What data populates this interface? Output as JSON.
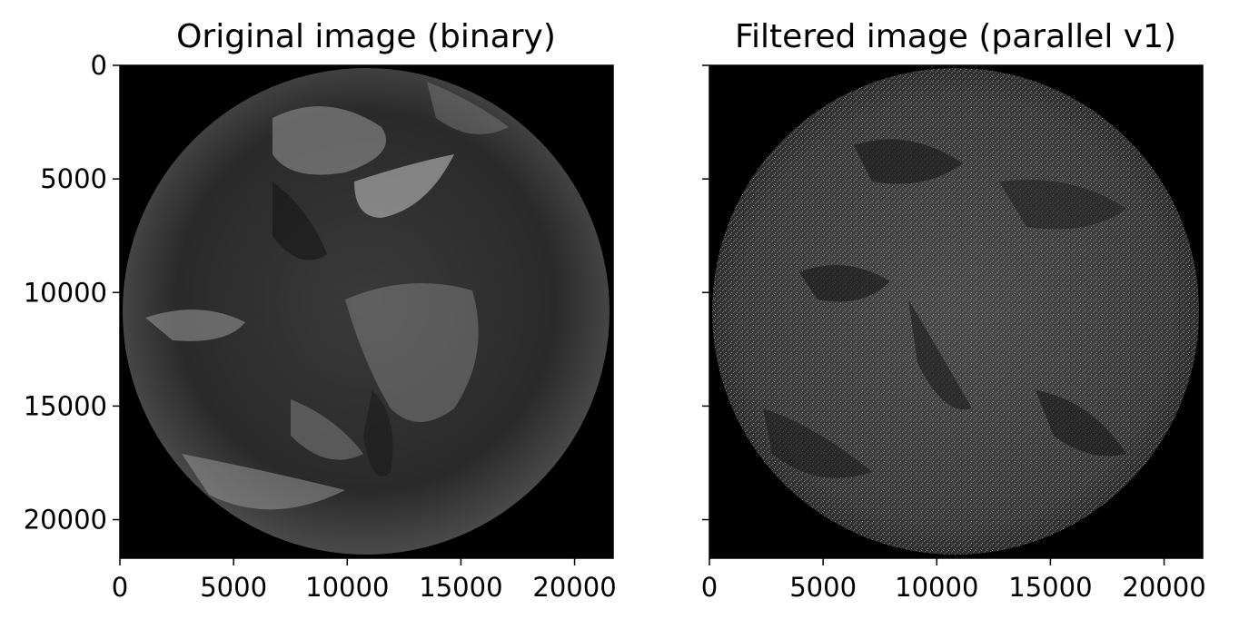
{
  "chart_data": [
    {
      "type": "image",
      "title": "Original image (binary)",
      "xlim": [
        0,
        21696
      ],
      "ylim": [
        21696,
        0
      ],
      "xticks": [
        0,
        5000,
        10000,
        15000,
        20000
      ],
      "yticks": [
        0,
        5000,
        10000,
        15000,
        20000
      ],
      "xtick_labels": [
        "0",
        "5000",
        "10000",
        "15000",
        "20000"
      ],
      "ytick_labels": [
        "0",
        "5000",
        "10000",
        "15000",
        "20000"
      ],
      "show_ytick_labels": true,
      "content": "full-disk-earth-grayscale",
      "colors": {
        "background": "#000000",
        "rim": "#4a4a4a"
      }
    },
    {
      "type": "image",
      "title": "Filtered image (parallel v1)",
      "xlim": [
        0,
        21696
      ],
      "ylim": [
        21696,
        0
      ],
      "xticks": [
        0,
        5000,
        10000,
        15000,
        20000
      ],
      "yticks": [
        0,
        5000,
        10000,
        15000,
        20000
      ],
      "xtick_labels": [
        "0",
        "5000",
        "10000",
        "15000",
        "20000"
      ],
      "ytick_labels": [],
      "show_ytick_labels": false,
      "content": "full-disk-earth-edge-filtered",
      "colors": {
        "background": "#000000",
        "rim": "#3a3a3a"
      }
    }
  ]
}
